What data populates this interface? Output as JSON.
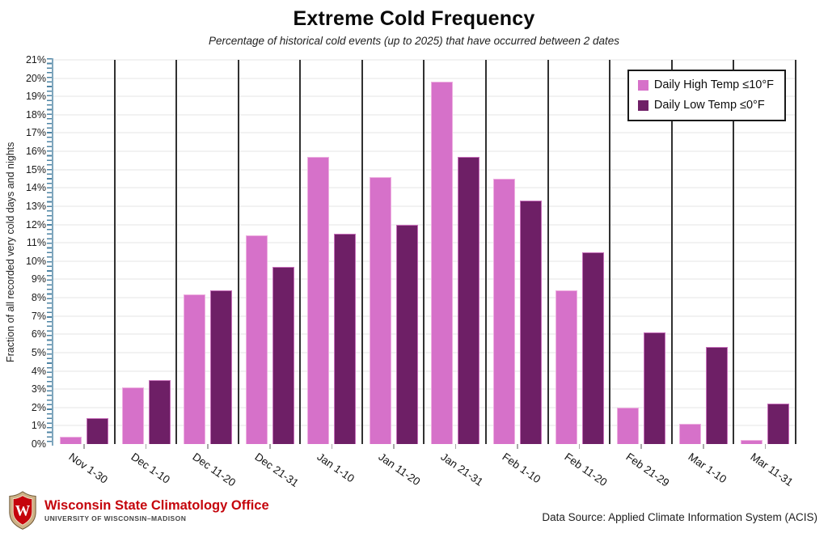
{
  "header": {
    "title": "Extreme Cold Frequency",
    "subtitle": "Percentage of historical cold events (up to 2025) that have occurred between 2 dates"
  },
  "chart_data": {
    "type": "bar",
    "title": "Extreme Cold Frequency",
    "subtitle": "Percentage of historical cold events (up to 2025) that have occurred between 2 dates",
    "categories": [
      "Nov 1-30",
      "Dec 1-10",
      "Dec 11-20",
      "Dec 21-31",
      "Jan 1-10",
      "Jan 11-20",
      "Jan 21-31",
      "Feb 1-10",
      "Feb 11-20",
      "Feb 21-29",
      "Mar 1-10",
      "Mar 11-31"
    ],
    "series": [
      {
        "name": "Daily High Temp ≤10°F",
        "color": "#d671c9",
        "border": "#eeafe0",
        "values": [
          0.4,
          3.1,
          8.2,
          11.4,
          15.7,
          14.6,
          19.8,
          14.5,
          8.4,
          2.0,
          1.1,
          0.2
        ]
      },
      {
        "name": "Daily Low Temp ≤0°F",
        "color": "#6e1f66",
        "border": "#c76fba",
        "values": [
          1.4,
          3.5,
          8.4,
          9.7,
          11.5,
          12.0,
          15.7,
          13.3,
          10.5,
          6.1,
          5.3,
          2.2
        ]
      }
    ],
    "xlabel": "",
    "ylabel": "Fraction of all recorded very cold days and nights",
    "ylim": [
      0,
      21
    ],
    "ytick_step": 1,
    "ytick_suffix": "%",
    "grid": true,
    "legend_position": "top-right"
  },
  "footer": {
    "org_name": "Wisconsin State Climatology Office",
    "org_sub": "UNIVERSITY OF WISCONSIN–MADISON",
    "data_source": "Data Source: Applied Climate Information System (ACIS)"
  },
  "colors": {
    "bar_high": "#d671c9",
    "bar_low": "#6e1f66",
    "axis_blue": "#4e84a4",
    "gridline": "#e6e6e6",
    "separator": "#313131",
    "uw_red": "#c5050c"
  }
}
